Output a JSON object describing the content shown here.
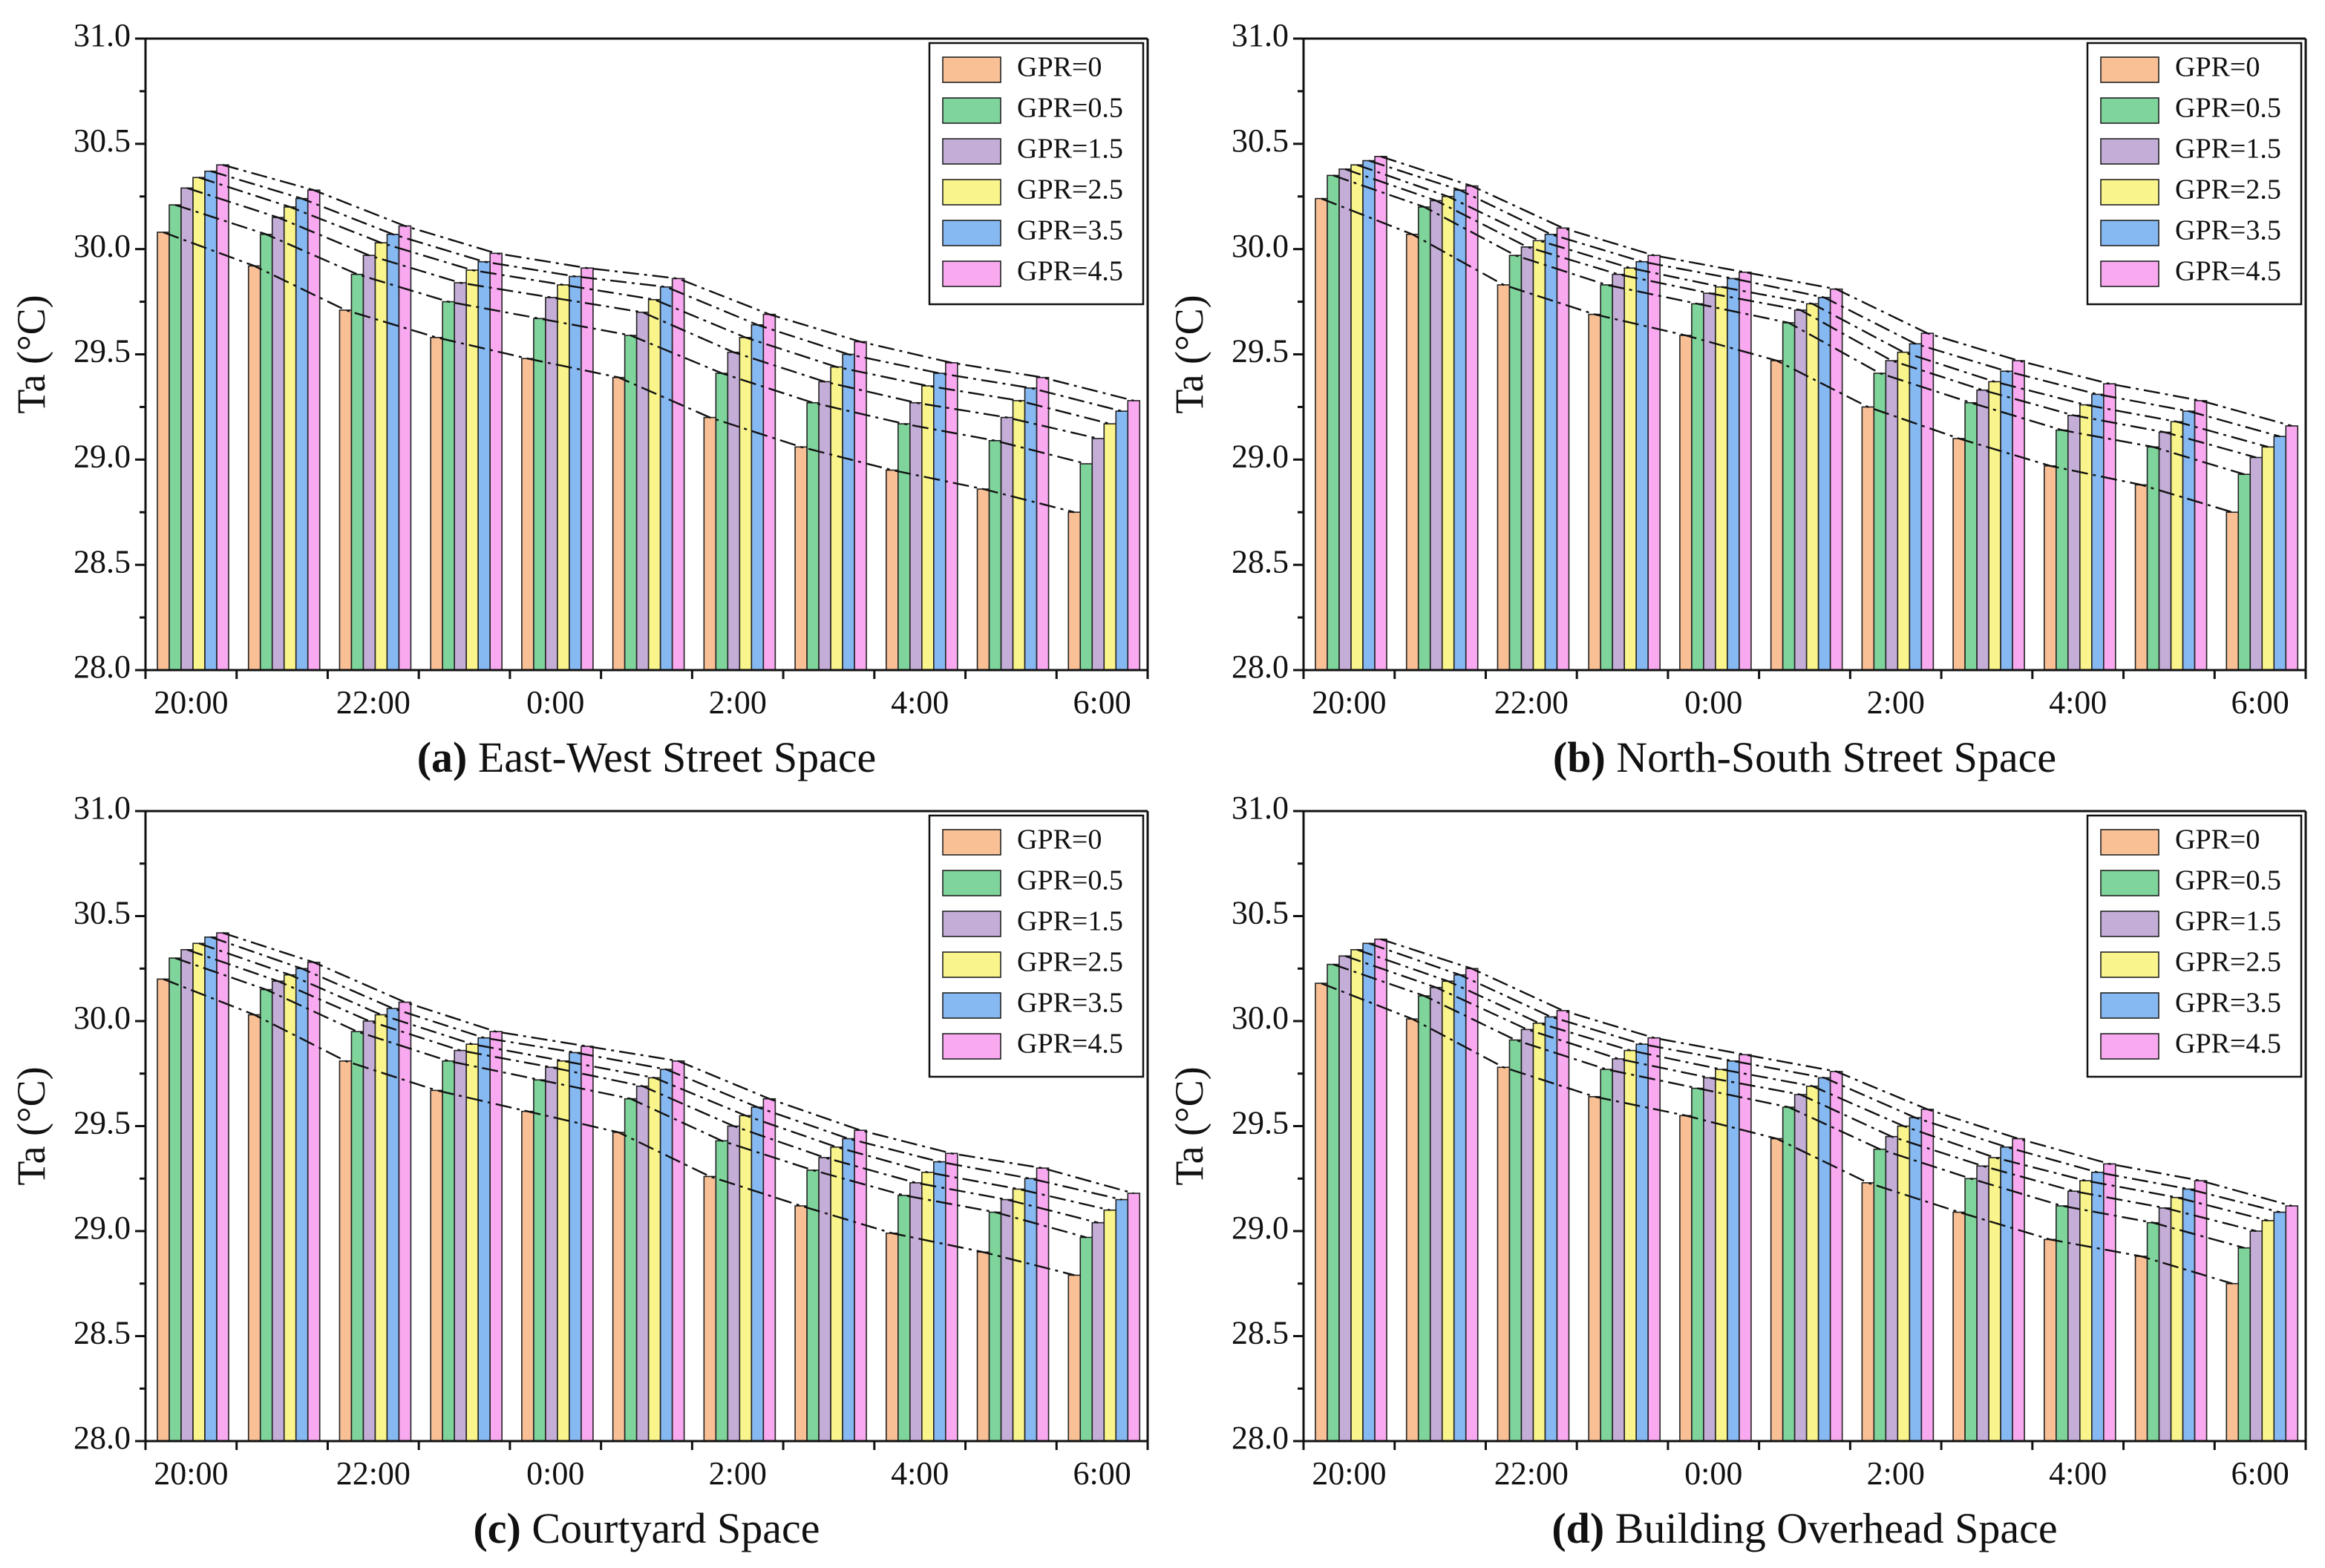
{
  "colors": {
    "GPR=0": "#f9c096",
    "GPR=0.5": "#7fd49b",
    "GPR=1.5": "#c4aed8",
    "GPR=2.5": "#f9f48b",
    "GPR=3.5": "#86b8f2",
    "GPR=4.5": "#f8a9f0"
  },
  "chart_data": [
    {
      "type": "bar",
      "panel_letter": "(a)",
      "title": "East-West Street Space",
      "ylabel": "Ta (°C)",
      "ylim": [
        28.0,
        31.0
      ],
      "yticks": [
        "28.0",
        "28.5",
        "29.0",
        "29.5",
        "30.0",
        "30.5",
        "31.0"
      ],
      "xticklabels": [
        "20:00",
        "22:00",
        "0:00",
        "2:00",
        "4:00",
        "6:00"
      ],
      "categories": [
        "20:00",
        "21:00",
        "22:00",
        "23:00",
        "0:00",
        "1:00",
        "2:00",
        "3:00",
        "4:00",
        "5:00",
        "6:00"
      ],
      "legend": [
        "GPR=0",
        "GPR=0.5",
        "GPR=1.5",
        "GPR=2.5",
        "GPR=3.5",
        "GPR=4.5"
      ],
      "legend_position": "top-right",
      "series": [
        {
          "name": "GPR=0",
          "values": [
            30.08,
            29.92,
            29.71,
            29.58,
            29.48,
            29.39,
            29.2,
            29.06,
            28.95,
            28.86,
            28.75
          ]
        },
        {
          "name": "GPR=0.5",
          "values": [
            30.21,
            30.07,
            29.88,
            29.75,
            29.67,
            29.59,
            29.41,
            29.27,
            29.17,
            29.09,
            28.98
          ]
        },
        {
          "name": "GPR=1.5",
          "values": [
            30.29,
            30.15,
            29.97,
            29.84,
            29.77,
            29.7,
            29.51,
            29.37,
            29.27,
            29.2,
            29.1
          ]
        },
        {
          "name": "GPR=2.5",
          "values": [
            30.34,
            30.2,
            30.03,
            29.9,
            29.83,
            29.76,
            29.58,
            29.44,
            29.35,
            29.28,
            29.17
          ]
        },
        {
          "name": "GPR=3.5",
          "values": [
            30.37,
            30.24,
            30.07,
            29.94,
            29.87,
            29.82,
            29.64,
            29.5,
            29.41,
            29.34,
            29.23
          ]
        },
        {
          "name": "GPR=4.5",
          "values": [
            30.4,
            30.28,
            30.11,
            29.98,
            29.91,
            29.86,
            29.69,
            29.56,
            29.46,
            29.39,
            29.28
          ]
        }
      ]
    },
    {
      "type": "bar",
      "panel_letter": "(b)",
      "title": "North-South Street Space",
      "ylabel": "Ta (°C)",
      "ylim": [
        28.0,
        31.0
      ],
      "yticks": [
        "28.0",
        "28.5",
        "29.0",
        "29.5",
        "30.0",
        "30.5",
        "31.0"
      ],
      "xticklabels": [
        "20:00",
        "22:00",
        "0:00",
        "2:00",
        "4:00",
        "6:00"
      ],
      "categories": [
        "20:00",
        "21:00",
        "22:00",
        "23:00",
        "0:00",
        "1:00",
        "2:00",
        "3:00",
        "4:00",
        "5:00",
        "6:00"
      ],
      "legend": [
        "GPR=0",
        "GPR=0.5",
        "GPR=1.5",
        "GPR=2.5",
        "GPR=3.5",
        "GPR=4.5"
      ],
      "legend_position": "top-right",
      "series": [
        {
          "name": "GPR=0",
          "values": [
            30.24,
            30.07,
            29.83,
            29.69,
            29.59,
            29.47,
            29.25,
            29.1,
            28.97,
            28.88,
            28.75
          ]
        },
        {
          "name": "GPR=0.5",
          "values": [
            30.35,
            30.2,
            29.97,
            29.83,
            29.74,
            29.65,
            29.41,
            29.27,
            29.14,
            29.06,
            28.93
          ]
        },
        {
          "name": "GPR=1.5",
          "values": [
            30.38,
            30.23,
            30.01,
            29.88,
            29.79,
            29.71,
            29.47,
            29.33,
            29.21,
            29.13,
            29.01
          ]
        },
        {
          "name": "GPR=2.5",
          "values": [
            30.4,
            30.25,
            30.04,
            29.91,
            29.82,
            29.74,
            29.51,
            29.37,
            29.26,
            29.18,
            29.06
          ]
        },
        {
          "name": "GPR=3.5",
          "values": [
            30.42,
            30.28,
            30.07,
            29.94,
            29.86,
            29.77,
            29.55,
            29.42,
            29.31,
            29.23,
            29.11
          ]
        },
        {
          "name": "GPR=4.5",
          "values": [
            30.44,
            30.3,
            30.1,
            29.97,
            29.89,
            29.81,
            29.6,
            29.47,
            29.36,
            29.28,
            29.16
          ]
        }
      ]
    },
    {
      "type": "bar",
      "panel_letter": "(c)",
      "title": "Courtyard Space",
      "ylabel": "Ta (°C)",
      "ylim": [
        28.0,
        31.0
      ],
      "yticks": [
        "28.0",
        "28.5",
        "29.0",
        "29.5",
        "30.0",
        "30.5",
        "31.0"
      ],
      "xticklabels": [
        "20:00",
        "22:00",
        "0:00",
        "2:00",
        "4:00",
        "6:00"
      ],
      "categories": [
        "20:00",
        "21:00",
        "22:00",
        "23:00",
        "0:00",
        "1:00",
        "2:00",
        "3:00",
        "4:00",
        "5:00",
        "6:00"
      ],
      "legend": [
        "GPR=0",
        "GPR=0.5",
        "GPR=1.5",
        "GPR=2.5",
        "GPR=3.5",
        "GPR=4.5"
      ],
      "legend_position": "top-right",
      "series": [
        {
          "name": "GPR=0",
          "values": [
            30.2,
            30.03,
            29.81,
            29.67,
            29.57,
            29.47,
            29.26,
            29.12,
            28.99,
            28.9,
            28.79
          ]
        },
        {
          "name": "GPR=0.5",
          "values": [
            30.3,
            30.15,
            29.95,
            29.81,
            29.72,
            29.63,
            29.43,
            29.29,
            29.17,
            29.09,
            28.97
          ]
        },
        {
          "name": "GPR=1.5",
          "values": [
            30.34,
            30.19,
            30.0,
            29.86,
            29.78,
            29.69,
            29.5,
            29.35,
            29.23,
            29.15,
            29.04
          ]
        },
        {
          "name": "GPR=2.5",
          "values": [
            30.37,
            30.22,
            30.03,
            29.89,
            29.81,
            29.73,
            29.55,
            29.4,
            29.28,
            29.2,
            29.1
          ]
        },
        {
          "name": "GPR=3.5",
          "values": [
            30.4,
            30.25,
            30.06,
            29.92,
            29.85,
            29.77,
            29.59,
            29.44,
            29.33,
            29.25,
            29.15
          ]
        },
        {
          "name": "GPR=4.5",
          "values": [
            30.42,
            30.28,
            30.09,
            29.95,
            29.88,
            29.81,
            29.63,
            29.48,
            29.37,
            29.3,
            29.18
          ]
        }
      ]
    },
    {
      "type": "bar",
      "panel_letter": "(d)",
      "title": "Building Overhead Space",
      "ylabel": "Ta (°C)",
      "ylim": [
        28.0,
        31.0
      ],
      "yticks": [
        "28.0",
        "28.5",
        "29.0",
        "29.5",
        "30.0",
        "30.5",
        "31.0"
      ],
      "xticklabels": [
        "20:00",
        "22:00",
        "0:00",
        "2:00",
        "4:00",
        "6:00"
      ],
      "categories": [
        "20:00",
        "21:00",
        "22:00",
        "23:00",
        "0:00",
        "1:00",
        "2:00",
        "3:00",
        "4:00",
        "5:00",
        "6:00"
      ],
      "legend": [
        "GPR=0",
        "GPR=0.5",
        "GPR=1.5",
        "GPR=2.5",
        "GPR=3.5",
        "GPR=4.5"
      ],
      "legend_position": "top-right",
      "series": [
        {
          "name": "GPR=0",
          "values": [
            30.18,
            30.01,
            29.78,
            29.64,
            29.55,
            29.44,
            29.23,
            29.09,
            28.96,
            28.88,
            28.75
          ]
        },
        {
          "name": "GPR=0.5",
          "values": [
            30.27,
            30.12,
            29.91,
            29.77,
            29.68,
            29.59,
            29.39,
            29.25,
            29.12,
            29.04,
            28.92
          ]
        },
        {
          "name": "GPR=1.5",
          "values": [
            30.31,
            30.16,
            29.96,
            29.82,
            29.73,
            29.65,
            29.45,
            29.31,
            29.19,
            29.11,
            29.0
          ]
        },
        {
          "name": "GPR=2.5",
          "values": [
            30.34,
            30.19,
            29.99,
            29.86,
            29.77,
            29.69,
            29.5,
            29.35,
            29.24,
            29.16,
            29.05
          ]
        },
        {
          "name": "GPR=3.5",
          "values": [
            30.37,
            30.22,
            30.02,
            29.89,
            29.81,
            29.73,
            29.54,
            29.4,
            29.28,
            29.2,
            29.09
          ]
        },
        {
          "name": "GPR=4.5",
          "values": [
            30.39,
            30.25,
            30.05,
            29.92,
            29.84,
            29.76,
            29.58,
            29.44,
            29.32,
            29.24,
            29.12
          ]
        }
      ]
    }
  ]
}
